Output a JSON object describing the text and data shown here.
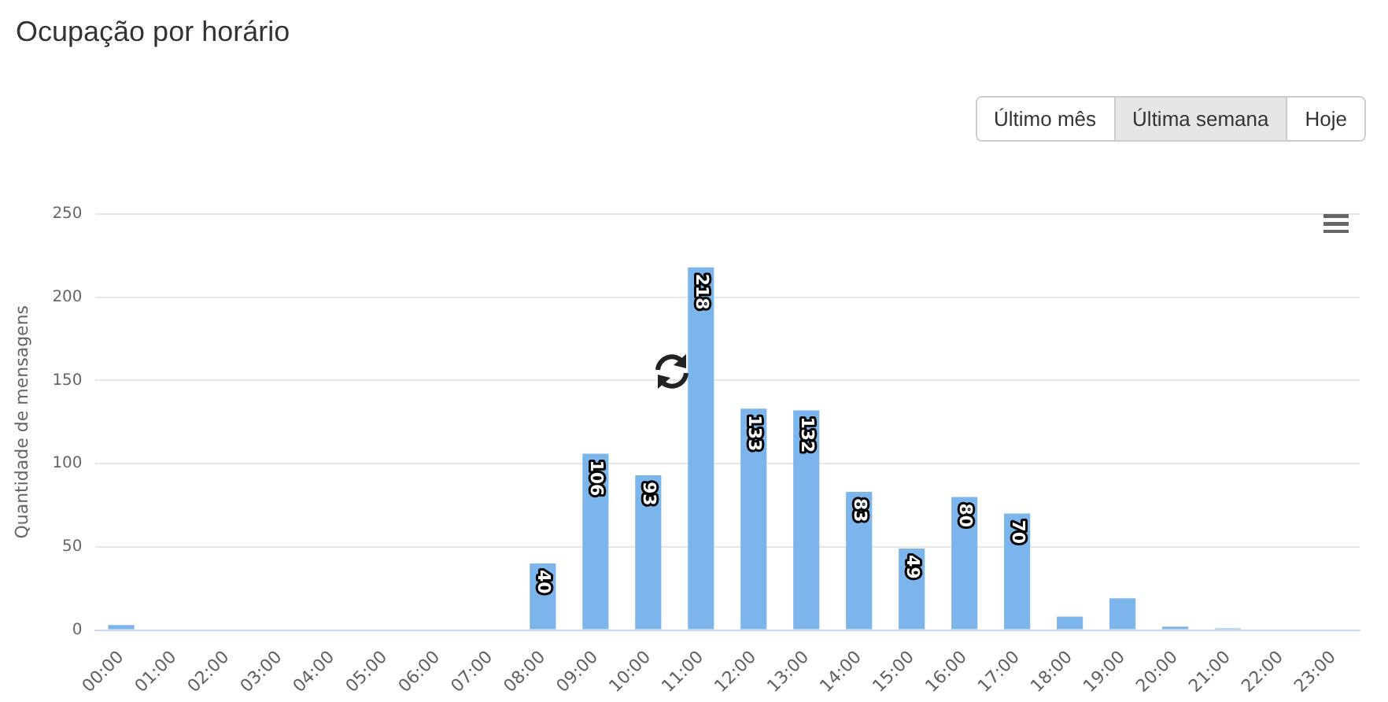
{
  "chart_data": {
    "type": "bar",
    "title": "Ocupação por horário",
    "ylabel": "Quantidade de mensagens",
    "categories": [
      "00:00",
      "01:00",
      "02:00",
      "03:00",
      "04:00",
      "05:00",
      "06:00",
      "07:00",
      "08:00",
      "09:00",
      "10:00",
      "11:00",
      "12:00",
      "13:00",
      "14:00",
      "15:00",
      "16:00",
      "17:00",
      "18:00",
      "19:00",
      "20:00",
      "21:00",
      "22:00",
      "23:00"
    ],
    "values": [
      3,
      0,
      0,
      0,
      0,
      0,
      0,
      0,
      40,
      106,
      93,
      218,
      133,
      132,
      83,
      49,
      80,
      70,
      8,
      19,
      2,
      1,
      0,
      0
    ],
    "value_labels": [
      null,
      null,
      null,
      null,
      null,
      null,
      null,
      null,
      "40",
      "106",
      "93",
      "218",
      "133",
      "132",
      "83",
      "49",
      "80",
      "70",
      null,
      null,
      null,
      null,
      null,
      null
    ],
    "color": "#7cb5ec",
    "ylim": [
      0,
      250
    ],
    "yticks": [
      0,
      50,
      100,
      150,
      200,
      250
    ],
    "grid": "y",
    "legend": false,
    "annotations": [
      "Último mês",
      "Última semana",
      "Hoje"
    ]
  }
}
